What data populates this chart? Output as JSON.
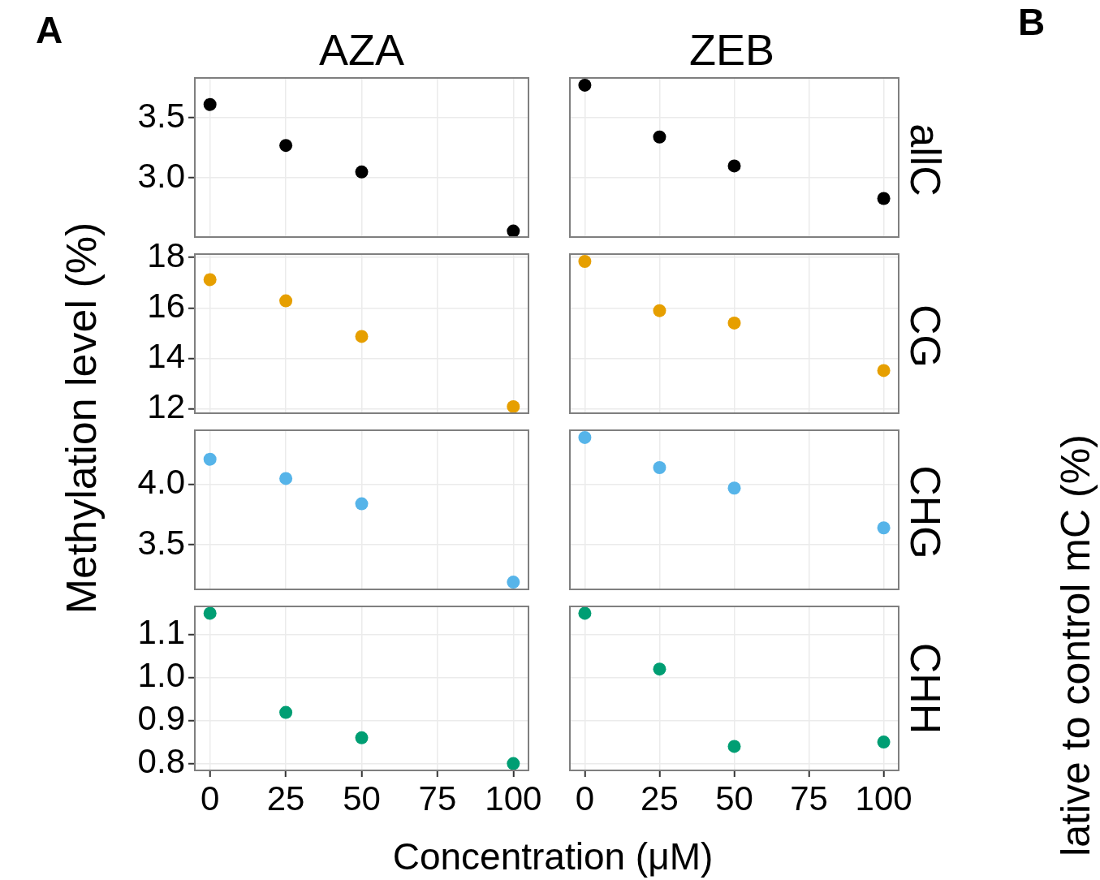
{
  "chart_data": [
    {
      "type": "scatter",
      "title": "AZA",
      "ylabel": "Methylation level (%)",
      "annotations": [
        "A"
      ],
      "x": [
        0,
        25,
        50,
        100
      ],
      "values": [
        3.61,
        3.27,
        3.05,
        2.56
      ],
      "color": "#000000",
      "marker": "circle",
      "xlim": [
        -5,
        105
      ],
      "xticks": [
        0,
        25,
        50,
        75,
        100
      ],
      "ylim": [
        2.51,
        3.83
      ],
      "yticks": [
        {
          "value": 3,
          "label": "3.0"
        },
        3.5
      ],
      "grid": true,
      "tick_labels": "y"
    },
    {
      "type": "scatter",
      "title": "ZEB",
      "y2label": "allC",
      "annotations": [
        "B",
        "lative to control mC (%)"
      ],
      "x": [
        0,
        25,
        50,
        100
      ],
      "values": [
        3.77,
        3.34,
        3.1,
        2.83
      ],
      "color": "#000000",
      "marker": "circle",
      "xlim": [
        -5,
        105
      ],
      "xticks": [
        0,
        25,
        50,
        75,
        100
      ],
      "ylim": [
        2.51,
        3.83
      ],
      "yticks": [
        3,
        3.5
      ],
      "grid": true,
      "tick_labels": false
    },
    {
      "type": "scatter",
      "x": [
        0,
        25,
        50,
        100
      ],
      "values": [
        17.12,
        16.28,
        14.87,
        12.09
      ],
      "color": "#e69f00",
      "marker": "circle",
      "xlim": [
        -5,
        105
      ],
      "xticks": [
        0,
        25,
        50,
        75,
        100
      ],
      "ylim": [
        11.83,
        18.13
      ],
      "yticks": [
        12,
        14,
        16,
        18
      ],
      "grid": true,
      "tick_labels": "y"
    },
    {
      "type": "scatter",
      "y2label": "CG",
      "x": [
        0,
        25,
        50,
        100
      ],
      "values": [
        17.84,
        15.89,
        15.4,
        13.52
      ],
      "color": "#e69f00",
      "marker": "circle",
      "xlim": [
        -5,
        105
      ],
      "xticks": [
        0,
        25,
        50,
        75,
        100
      ],
      "ylim": [
        11.83,
        18.13
      ],
      "yticks": [
        12,
        14,
        16,
        18
      ],
      "grid": true,
      "tick_labels": false
    },
    {
      "type": "scatter",
      "x": [
        0,
        25,
        50,
        100
      ],
      "values": [
        4.21,
        4.05,
        3.84,
        3.19
      ],
      "color": "#56b4e9",
      "marker": "circle",
      "xlim": [
        -5,
        105
      ],
      "xticks": [
        0,
        25,
        50,
        75,
        100
      ],
      "ylim": [
        3.13,
        4.45
      ],
      "yticks": [
        3.5,
        {
          "value": 4,
          "label": "4.0"
        }
      ],
      "grid": true,
      "tick_labels": "y"
    },
    {
      "type": "scatter",
      "y2label": "CHG",
      "x": [
        0,
        25,
        50,
        100
      ],
      "values": [
        4.39,
        4.14,
        3.97,
        3.64
      ],
      "color": "#56b4e9",
      "marker": "circle",
      "xlim": [
        -5,
        105
      ],
      "xticks": [
        0,
        25,
        50,
        75,
        100
      ],
      "ylim": [
        3.13,
        4.45
      ],
      "yticks": [
        3.5,
        4
      ],
      "grid": true,
      "tick_labels": false
    },
    {
      "type": "scatter",
      "xlabel": "Concentration (μM)",
      "x": [
        0,
        25,
        50,
        100
      ],
      "values": [
        1.15,
        0.919,
        0.86,
        0.8
      ],
      "color": "#009e73",
      "marker": "circle",
      "xlim": [
        -5,
        105
      ],
      "xticks": [
        0,
        25,
        50,
        75,
        100
      ],
      "ylim": [
        0.784,
        1.166
      ],
      "yticks": [
        0.8,
        0.9,
        {
          "value": 1,
          "label": "1.0"
        },
        1.1
      ],
      "grid": true
    },
    {
      "type": "scatter",
      "y2label": "CHH",
      "x": [
        0,
        25,
        50,
        100
      ],
      "values": [
        1.15,
        1.02,
        0.84,
        0.85
      ],
      "color": "#009e73",
      "marker": "circle",
      "xlim": [
        -5,
        105
      ],
      "xticks": [
        0,
        25,
        50,
        75,
        100
      ],
      "ylim": [
        0.784,
        1.166
      ],
      "yticks": [
        0.8,
        0.9,
        1,
        1.1
      ],
      "grid": true,
      "tick_labels": "x"
    }
  ]
}
